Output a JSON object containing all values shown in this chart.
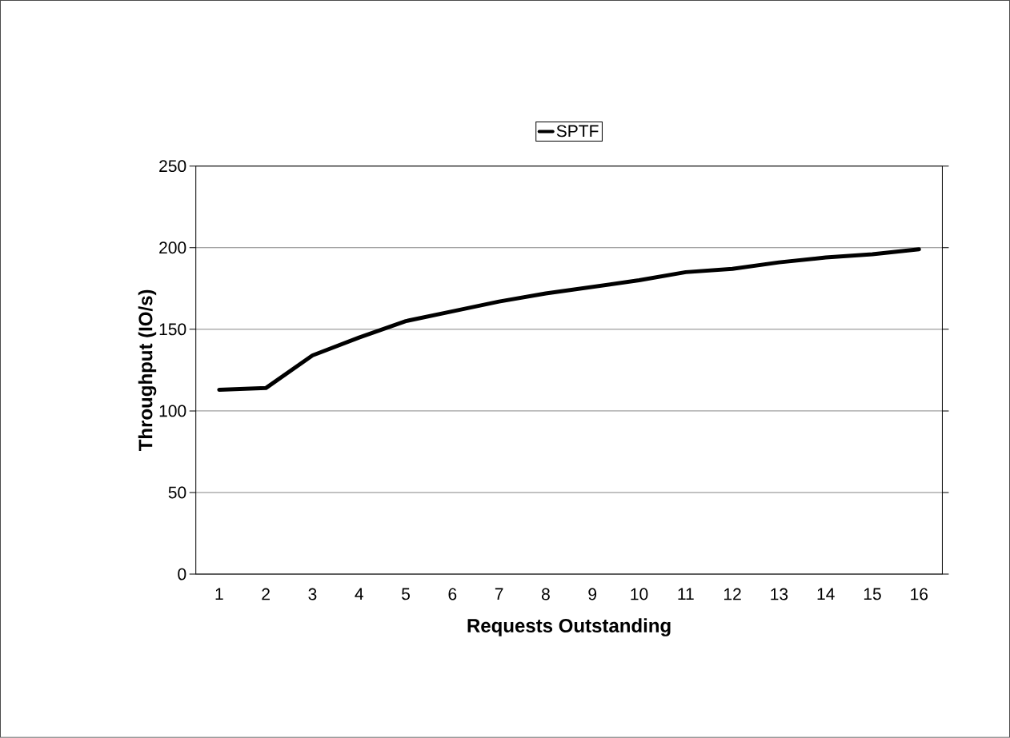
{
  "chart_data": {
    "type": "line",
    "xlabel": "Requests Outstanding",
    "ylabel": "Throughput (IO/s)",
    "categories": [
      "1",
      "2",
      "3",
      "4",
      "5",
      "6",
      "7",
      "8",
      "9",
      "10",
      "11",
      "12",
      "13",
      "14",
      "15",
      "16"
    ],
    "series": [
      {
        "name": "SPTF",
        "color": "#000000",
        "values": [
          113,
          114,
          134,
          145,
          155,
          161,
          167,
          172,
          176,
          180,
          185,
          187,
          191,
          194,
          196,
          199
        ]
      }
    ],
    "ylim": [
      0,
      250
    ],
    "yticks": [
      0,
      50,
      100,
      150,
      200,
      250
    ],
    "grid": "y",
    "legend": "top",
    "marker": "none",
    "line_style": "solid"
  }
}
